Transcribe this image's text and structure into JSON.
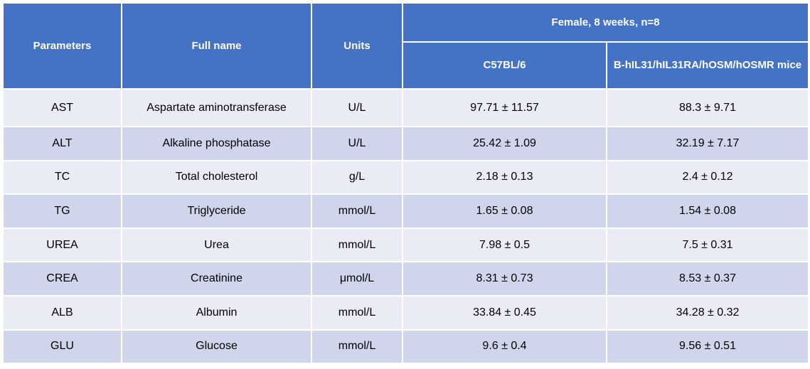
{
  "table": {
    "headers": {
      "parameters": "Parameters",
      "full_name": "Full name",
      "units": "Units",
      "group": "Female, 8 weeks, n=8",
      "strain_1": "C57BL/6",
      "strain_2": "B-hIL31/hIL31RA/hOSM/hOSMR mice"
    },
    "rows": [
      {
        "param": "AST",
        "name": "Aspartate aminotransferase",
        "unit": "U/L",
        "c57": "97.71 ± 11.57",
        "humanized": "88.3 ± 9.71"
      },
      {
        "param": "ALT",
        "name": "Alkaline phosphatase",
        "unit": "U/L",
        "c57": "25.42 ± 1.09",
        "humanized": "32.19 ± 7.17"
      },
      {
        "param": "TC",
        "name": "Total cholesterol",
        "unit": "g/L",
        "c57": "2.18 ± 0.13",
        "humanized": "2.4 ± 0.12"
      },
      {
        "param": "TG",
        "name": "Triglyceride",
        "unit": "mmol/L",
        "c57": "1.65 ± 0.08",
        "humanized": "1.54 ± 0.08"
      },
      {
        "param": "UREA",
        "name": "Urea",
        "unit": "mmol/L",
        "c57": "7.98 ± 0.5",
        "humanized": "7.5 ± 0.31"
      },
      {
        "param": "CREA",
        "name": "Creatinine",
        "unit": "μmol/L",
        "c57": "8.31 ± 0.73",
        "humanized": "8.53 ± 0.37"
      },
      {
        "param": "ALB",
        "name": "Albumin",
        "unit": "mmol/L",
        "c57": "33.84 ± 0.45",
        "humanized": "34.28 ± 0.32"
      },
      {
        "param": "GLU",
        "name": "Glucose",
        "unit": "mmol/L",
        "c57": "9.6 ± 0.4",
        "humanized": "9.56 ± 0.51"
      }
    ],
    "colors": {
      "header_bg": "#4472c4",
      "row_light": "#e9ebf5",
      "row_dark": "#cfd5ea"
    }
  }
}
